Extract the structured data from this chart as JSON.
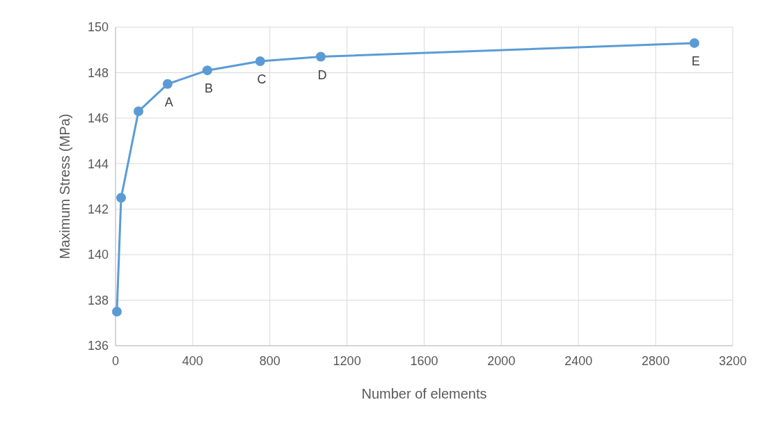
{
  "chart_data": {
    "type": "line",
    "xlabel": "Number of elements",
    "ylabel": "Maximum Stress (MPa)",
    "x": [
      7,
      29,
      119,
      270,
      476,
      750,
      1064,
      3001
    ],
    "series": [
      {
        "color": "#5b9bd5",
        "values": [
          137.5,
          142.5,
          146.3,
          147.5,
          148.1,
          148.5,
          148.7,
          149.3
        ]
      }
    ],
    "xlim": [
      0,
      3200
    ],
    "xticks": [
      0,
      400,
      800,
      1200,
      1600,
      2000,
      2400,
      2800,
      3200
    ],
    "ylim": [
      136,
      150
    ],
    "yticks": [
      136,
      138,
      140,
      142,
      144,
      146,
      148,
      150
    ],
    "grid": true,
    "marker": "circle",
    "line_style": "solid",
    "annotations": [
      {
        "text": "A",
        "x": 270,
        "y": 147.5
      },
      {
        "text": "B",
        "x": 476,
        "y": 148.1
      },
      {
        "text": "C",
        "x": 750,
        "y": 148.5
      },
      {
        "text": "D",
        "x": 1064,
        "y": 148.7
      },
      {
        "text": "E",
        "x": 3001,
        "y": 149.3
      }
    ]
  }
}
